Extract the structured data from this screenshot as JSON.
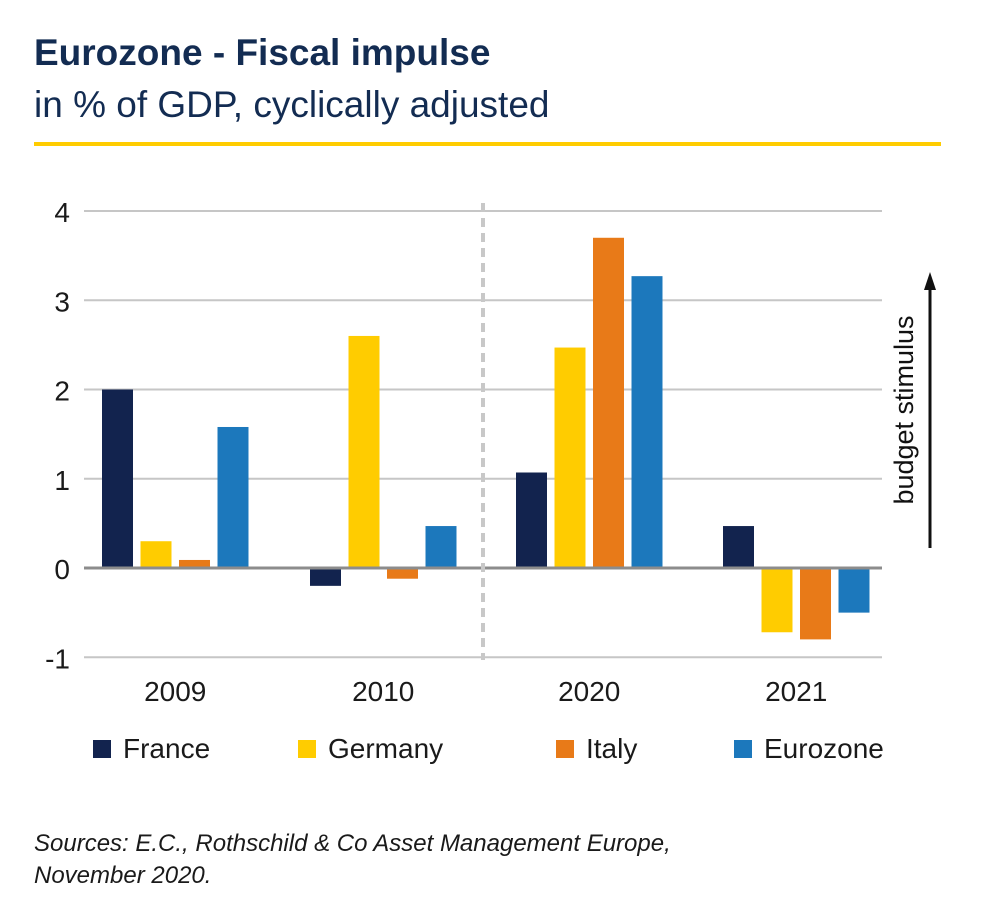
{
  "header": {
    "title": "Eurozone - Fiscal impulse",
    "subtitle": "in % of GDP, cyclically adjusted"
  },
  "colors": {
    "France": "#12234e",
    "Germany": "#ffcc00",
    "Italy": "#e87a18",
    "Eurozone": "#1c78bc",
    "accent_rule": "#ffcc00",
    "title_text": "#132c52"
  },
  "chart_data": {
    "type": "bar",
    "categories": [
      "2009",
      "2010",
      "2020",
      "2021"
    ],
    "series": [
      {
        "name": "France",
        "values": [
          2.0,
          -0.2,
          1.07,
          0.47
        ]
      },
      {
        "name": "Germany",
        "values": [
          0.3,
          2.6,
          2.47,
          -0.72
        ]
      },
      {
        "name": "Italy",
        "values": [
          0.09,
          -0.12,
          3.7,
          -0.8
        ]
      },
      {
        "name": "Eurozone",
        "values": [
          1.58,
          0.47,
          3.27,
          -0.5
        ]
      }
    ],
    "ylim": [
      -1,
      4
    ],
    "yticks": [
      "4",
      "3",
      "2",
      "1",
      "0",
      "-1"
    ],
    "ytick_values": [
      4,
      3,
      2,
      1,
      0,
      -1
    ],
    "grid": true,
    "divider_after_category": "2010",
    "annotation": "budget stimulus",
    "legend_position": "bottom"
  },
  "source": {
    "line1": "Sources: E.C., Rothschild & Co Asset Management Europe,",
    "line2": "November 2020."
  }
}
